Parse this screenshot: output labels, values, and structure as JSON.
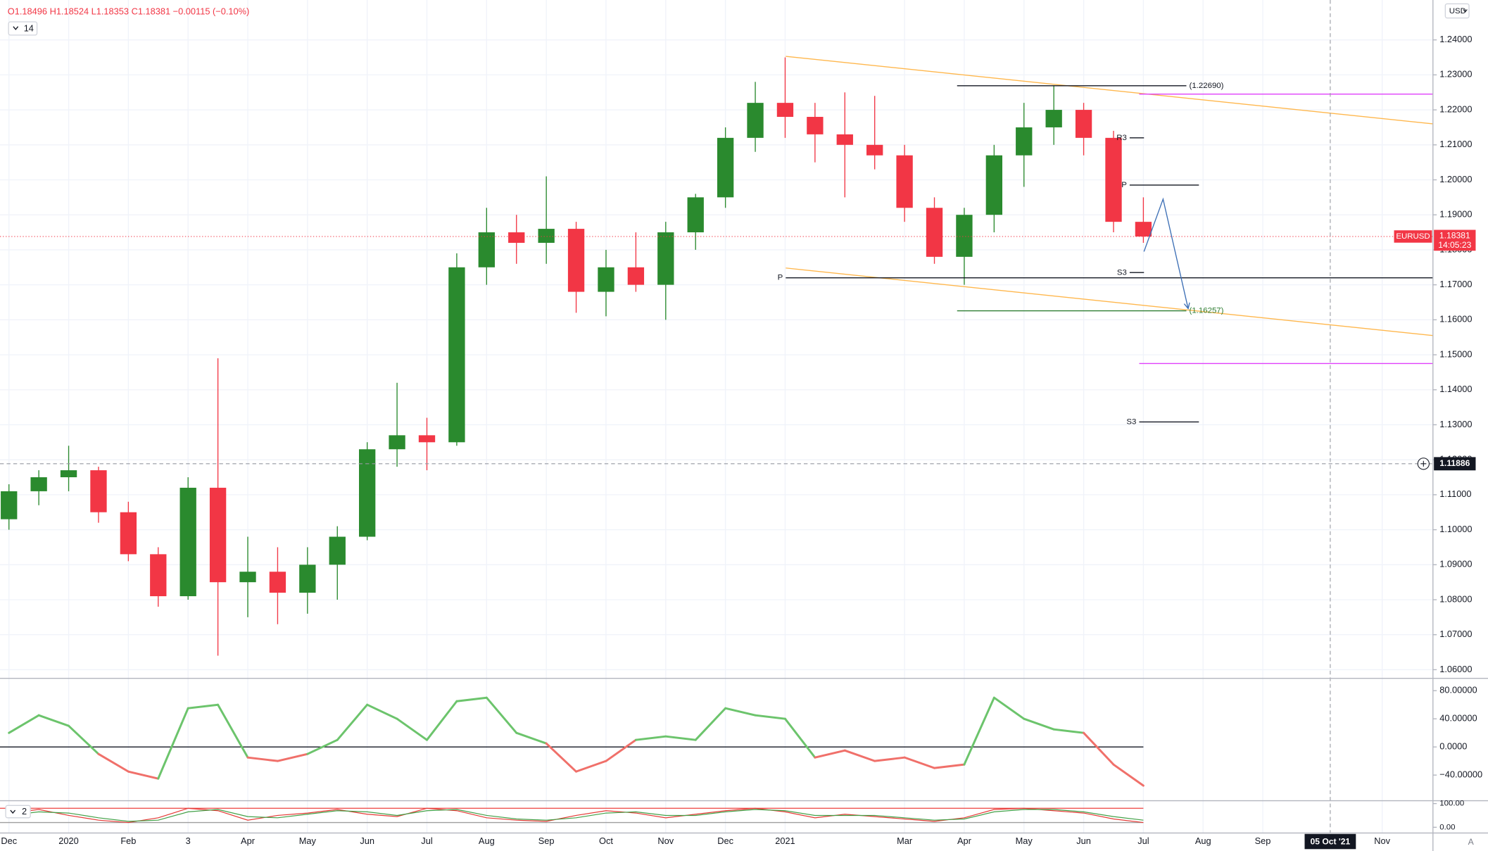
{
  "header": {
    "open": "O1.18496",
    "high": "H1.18524",
    "low": "L1.18353",
    "close": "C1.18381",
    "change": "−0.00115 (−0.10%)",
    "interval": "14"
  },
  "currency": "USD",
  "auto_button": "A",
  "chart_data": [
    {
      "type": "candlestick",
      "symbol": "EURUSD",
      "x": [
        0,
        0.5,
        1,
        1.5,
        2,
        2.5,
        3,
        3.5,
        4,
        4.5,
        5,
        5.5,
        6,
        6.5,
        7,
        7.5,
        8,
        8.5,
        9,
        9.5,
        10,
        10.5,
        11,
        11.5,
        12,
        12.5,
        13,
        13.5,
        14,
        14.5,
        15,
        15.5,
        16,
        16.5,
        17,
        17.5,
        18,
        18.5,
        19
      ],
      "open": [
        1.103,
        1.111,
        1.115,
        1.117,
        1.105,
        1.093,
        1.081,
        1.112,
        1.085,
        1.088,
        1.082,
        1.09,
        1.098,
        1.123,
        1.127,
        1.125,
        1.175,
        1.185,
        1.182,
        1.186,
        1.168,
        1.175,
        1.17,
        1.185,
        1.195,
        1.212,
        1.222,
        1.218,
        1.213,
        1.21,
        1.207,
        1.192,
        1.178,
        1.19,
        1.207,
        1.215,
        1.22,
        1.212,
        1.188
      ],
      "high": [
        1.113,
        1.117,
        1.124,
        1.118,
        1.108,
        1.095,
        1.115,
        1.149,
        1.098,
        1.095,
        1.095,
        1.101,
        1.125,
        1.142,
        1.132,
        1.179,
        1.192,
        1.19,
        1.201,
        1.188,
        1.18,
        1.185,
        1.188,
        1.196,
        1.215,
        1.228,
        1.235,
        1.222,
        1.225,
        1.224,
        1.21,
        1.195,
        1.192,
        1.21,
        1.222,
        1.227,
        1.222,
        1.214,
        1.195
      ],
      "low": [
        1.1,
        1.107,
        1.111,
        1.102,
        1.091,
        1.078,
        1.08,
        1.064,
        1.075,
        1.073,
        1.076,
        1.08,
        1.097,
        1.118,
        1.117,
        1.124,
        1.17,
        1.176,
        1.176,
        1.162,
        1.161,
        1.168,
        1.16,
        1.18,
        1.192,
        1.208,
        1.212,
        1.205,
        1.195,
        1.203,
        1.188,
        1.176,
        1.17,
        1.185,
        1.198,
        1.21,
        1.207,
        1.185,
        1.182
      ],
      "close": [
        1.111,
        1.115,
        1.117,
        1.105,
        1.093,
        1.081,
        1.112,
        1.085,
        1.088,
        1.082,
        1.09,
        1.098,
        1.123,
        1.127,
        1.125,
        1.175,
        1.185,
        1.182,
        1.186,
        1.168,
        1.175,
        1.17,
        1.185,
        1.195,
        1.212,
        1.222,
        1.218,
        1.213,
        1.21,
        1.207,
        1.192,
        1.178,
        1.19,
        1.207,
        1.215,
        1.22,
        1.212,
        1.188,
        1.18381
      ],
      "up_color": "#2a8a2e",
      "down_color": "#f23645",
      "xlim": [
        -0.15,
        23.85
      ],
      "xticks": [
        {
          "value": 0,
          "label": "Dec"
        },
        {
          "value": 1,
          "label": "2020"
        },
        {
          "value": 2,
          "label": "Feb"
        },
        {
          "value": 3,
          "label": "3"
        },
        {
          "value": 4,
          "label": "Apr"
        },
        {
          "value": 5,
          "label": "May"
        },
        {
          "value": 6,
          "label": "Jun"
        },
        {
          "value": 7,
          "label": "Jul"
        },
        {
          "value": 8,
          "label": "Aug"
        },
        {
          "value": 9,
          "label": "Sep"
        },
        {
          "value": 10,
          "label": "Oct"
        },
        {
          "value": 11,
          "label": "Nov"
        },
        {
          "value": 12,
          "label": "Dec"
        },
        {
          "value": 13,
          "label": "2021"
        },
        {
          "value": 15,
          "label": "Mar"
        },
        {
          "value": 16,
          "label": "Apr"
        },
        {
          "value": 17,
          "label": "May"
        },
        {
          "value": 18,
          "label": "Jun"
        },
        {
          "value": 19,
          "label": "Jul"
        },
        {
          "value": 20,
          "label": "Aug"
        },
        {
          "value": 21,
          "label": "Sep"
        },
        {
          "value": 23,
          "label": "Nov"
        }
      ],
      "ylim": [
        1.0578,
        1.2514
      ],
      "yticks": [
        {
          "value": 1.06,
          "label": "1.06000"
        },
        {
          "value": 1.07,
          "label": "1.07000"
        },
        {
          "value": 1.08,
          "label": "1.08000"
        },
        {
          "value": 1.09,
          "label": "1.09000"
        },
        {
          "value": 1.1,
          "label": "1.10000"
        },
        {
          "value": 1.11,
          "label": "1.11000"
        },
        {
          "value": 1.12,
          "label": "1.12000"
        },
        {
          "value": 1.13,
          "label": "1.13000"
        },
        {
          "value": 1.14,
          "label": "1.14000"
        },
        {
          "value": 1.15,
          "label": "1.15000"
        },
        {
          "value": 1.16,
          "label": "1.16000"
        },
        {
          "value": 1.17,
          "label": "1.17000"
        },
        {
          "value": 1.18,
          "label": "1.18000"
        },
        {
          "value": 1.19,
          "label": "1.19000"
        },
        {
          "value": 1.2,
          "label": "1.20000"
        },
        {
          "value": 1.21,
          "label": "1.21000"
        },
        {
          "value": 1.22,
          "label": "1.22000"
        },
        {
          "value": 1.23,
          "label": "1.23000"
        },
        {
          "value": 1.24,
          "label": "1.24000"
        }
      ],
      "grid": true,
      "last_price": {
        "value": 1.18381,
        "label": "1.18381",
        "countdown": "14:05:23",
        "color": "#f23645"
      },
      "crosshair": {
        "y": {
          "value": 1.11886,
          "label": "1.11886"
        },
        "x": {
          "value": 22.13,
          "label": "05 Oct '21"
        }
      },
      "levels": [
        {
          "label": "(1.22690)",
          "label_side": "right",
          "value": 1.2269,
          "x": [
            15.88,
            19.72
          ],
          "color": "#131722"
        },
        {
          "label": "(1.16257)",
          "label_side": "right",
          "value": 1.16257,
          "x": [
            15.88,
            19.72
          ],
          "color": "#2e7d32"
        },
        {
          "value": 1.2245,
          "x": [
            18.93,
            23.85
          ],
          "color": "#e040fb"
        },
        {
          "value": 1.1475,
          "x": [
            18.93,
            23.85
          ],
          "color": "#e040fb"
        },
        {
          "label": "P",
          "label_side": "left",
          "value": 1.172,
          "x": [
            13.01,
            23.85
          ],
          "color": "#131722"
        },
        {
          "label": "R3",
          "label_side": "left",
          "value": 1.212,
          "x": [
            18.77,
            19.01
          ],
          "color": "#131722"
        },
        {
          "label": "P",
          "label_side": "left",
          "value": 1.1985,
          "x": [
            18.77,
            19.93
          ],
          "color": "#131722"
        },
        {
          "label": "S3",
          "label_side": "left",
          "value": 1.1735,
          "x": [
            18.77,
            19.01
          ],
          "color": "#131722"
        },
        {
          "label": "S3",
          "label_side": "left",
          "value": 1.1308,
          "x": [
            18.93,
            19.93
          ],
          "color": "#131722"
        }
      ],
      "trend_lines": [
        {
          "x": [
            13.01,
            23.85
          ],
          "values": [
            1.2353,
            1.216
          ],
          "color": "#ffb74d"
        },
        {
          "x": [
            13.01,
            23.85
          ],
          "values": [
            1.1748,
            1.1555
          ],
          "color": "#ffb74d"
        }
      ],
      "projection": {
        "x": [
          19.01,
          19.33,
          19.75
        ],
        "values": [
          1.1795,
          1.1945,
          1.1632
        ],
        "color": "#3d6fb5"
      }
    },
    {
      "type": "line",
      "x": [
        0,
        0.5,
        1,
        1.5,
        2,
        2.5,
        3,
        3.5,
        4,
        4.5,
        5,
        5.5,
        6,
        6.5,
        7,
        7.5,
        8,
        8.5,
        9,
        9.5,
        10,
        10.5,
        11,
        11.5,
        12,
        12.5,
        13,
        13.5,
        14,
        14.5,
        15,
        15.5,
        16,
        16.5,
        17,
        17.5,
        18,
        18.5,
        19
      ],
      "values": [
        20,
        45,
        30,
        -10,
        -35,
        -45,
        55,
        60,
        -15,
        -20,
        -10,
        10,
        60,
        40,
        10,
        65,
        70,
        20,
        5,
        -35,
        -20,
        10,
        15,
        10,
        55,
        45,
        40,
        -15,
        -5,
        -20,
        -15,
        -30,
        -25,
        70,
        40,
        25,
        20,
        -25,
        -55
      ],
      "positive_color": "#6cc46c",
      "negative_color": "#f0706a",
      "baseline": 0,
      "ylim": [
        -75.1,
        96.2
      ],
      "yticks": [
        {
          "value": 80,
          "label": "80.00000"
        },
        {
          "value": 40,
          "label": "40.00000"
        },
        {
          "value": 0,
          "label": "0.0000"
        },
        {
          "value": -40,
          "label": "−40.00000"
        }
      ]
    },
    {
      "type": "line",
      "toggle_label": "2",
      "x": [
        0,
        0.5,
        1,
        1.5,
        2,
        2.5,
        3,
        3.5,
        4,
        4.5,
        5,
        5.5,
        6,
        6.5,
        7,
        7.5,
        8,
        8.5,
        9,
        9.5,
        10,
        10.5,
        11,
        11.5,
        12,
        12.5,
        13,
        13.5,
        14,
        14.5,
        15,
        15.5,
        16,
        16.5,
        17,
        17.5,
        18,
        18.5,
        19
      ],
      "series": [
        {
          "color": "#e53935",
          "values": [
            60,
            75,
            50,
            30,
            20,
            40,
            80,
            70,
            30,
            50,
            60,
            75,
            55,
            45,
            80,
            70,
            40,
            30,
            25,
            50,
            70,
            60,
            40,
            55,
            70,
            80,
            65,
            40,
            55,
            45,
            35,
            25,
            40,
            75,
            80,
            70,
            60,
            35,
            20
          ]
        },
        {
          "color": "#43a047",
          "values": [
            50,
            65,
            60,
            40,
            25,
            30,
            65,
            75,
            45,
            40,
            55,
            70,
            65,
            50,
            70,
            75,
            50,
            35,
            30,
            40,
            60,
            65,
            50,
            50,
            65,
            75,
            70,
            50,
            50,
            50,
            40,
            30,
            35,
            65,
            75,
            75,
            65,
            45,
            30
          ]
        }
      ],
      "bands": [
        {
          "value": 80,
          "color": "#ef5350"
        },
        {
          "value": 20,
          "color": "#9e9e9e"
        }
      ],
      "ylim": [
        -24,
        108
      ],
      "yticks": [
        {
          "value": 100,
          "label": "100.00"
        },
        {
          "value": 0,
          "label": "0.00"
        }
      ]
    }
  ]
}
